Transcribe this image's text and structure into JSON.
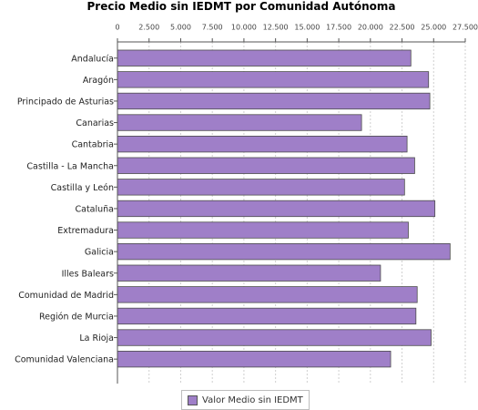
{
  "colors": {
    "bar": "#9f7fc8",
    "bar_border": "#4d4d4d",
    "grid": "#cfcfcf",
    "axis": "#555555"
  },
  "chart_data": {
    "type": "bar",
    "orientation": "horizontal",
    "title": "Precio Medio sin IEDMT por Comunidad Autónoma",
    "xlabel": "",
    "ylabel": "",
    "xlim": [
      0,
      27500
    ],
    "ticks": [
      "0",
      "2.500",
      "5.000",
      "7.500",
      "10.000",
      "12.500",
      "15.000",
      "17.500",
      "20.000",
      "22.500",
      "25.000",
      "27.500"
    ],
    "tick_values": [
      0,
      2500,
      5000,
      7500,
      10000,
      12500,
      15000,
      17500,
      20000,
      22500,
      25000,
      27500
    ],
    "grid": true,
    "legend_position": "bottom",
    "categories": [
      "Andalucía",
      "Aragón",
      "Principado de Asturias",
      "Canarias",
      "Cantabria",
      "Castilla - La Mancha",
      "Castilla y León",
      "Cataluña",
      "Extremadura",
      "Galicia",
      "Illes Balears",
      "Comunidad de Madrid",
      "Región de Murcia",
      "La Rioja",
      "Comunidad Valenciana"
    ],
    "series": [
      {
        "name": "Valor Medio sin IEDMT",
        "values": [
          23200,
          24600,
          24700,
          19300,
          22900,
          23500,
          22700,
          25100,
          23000,
          26300,
          20800,
          23700,
          23600,
          24800,
          21600
        ]
      }
    ]
  }
}
